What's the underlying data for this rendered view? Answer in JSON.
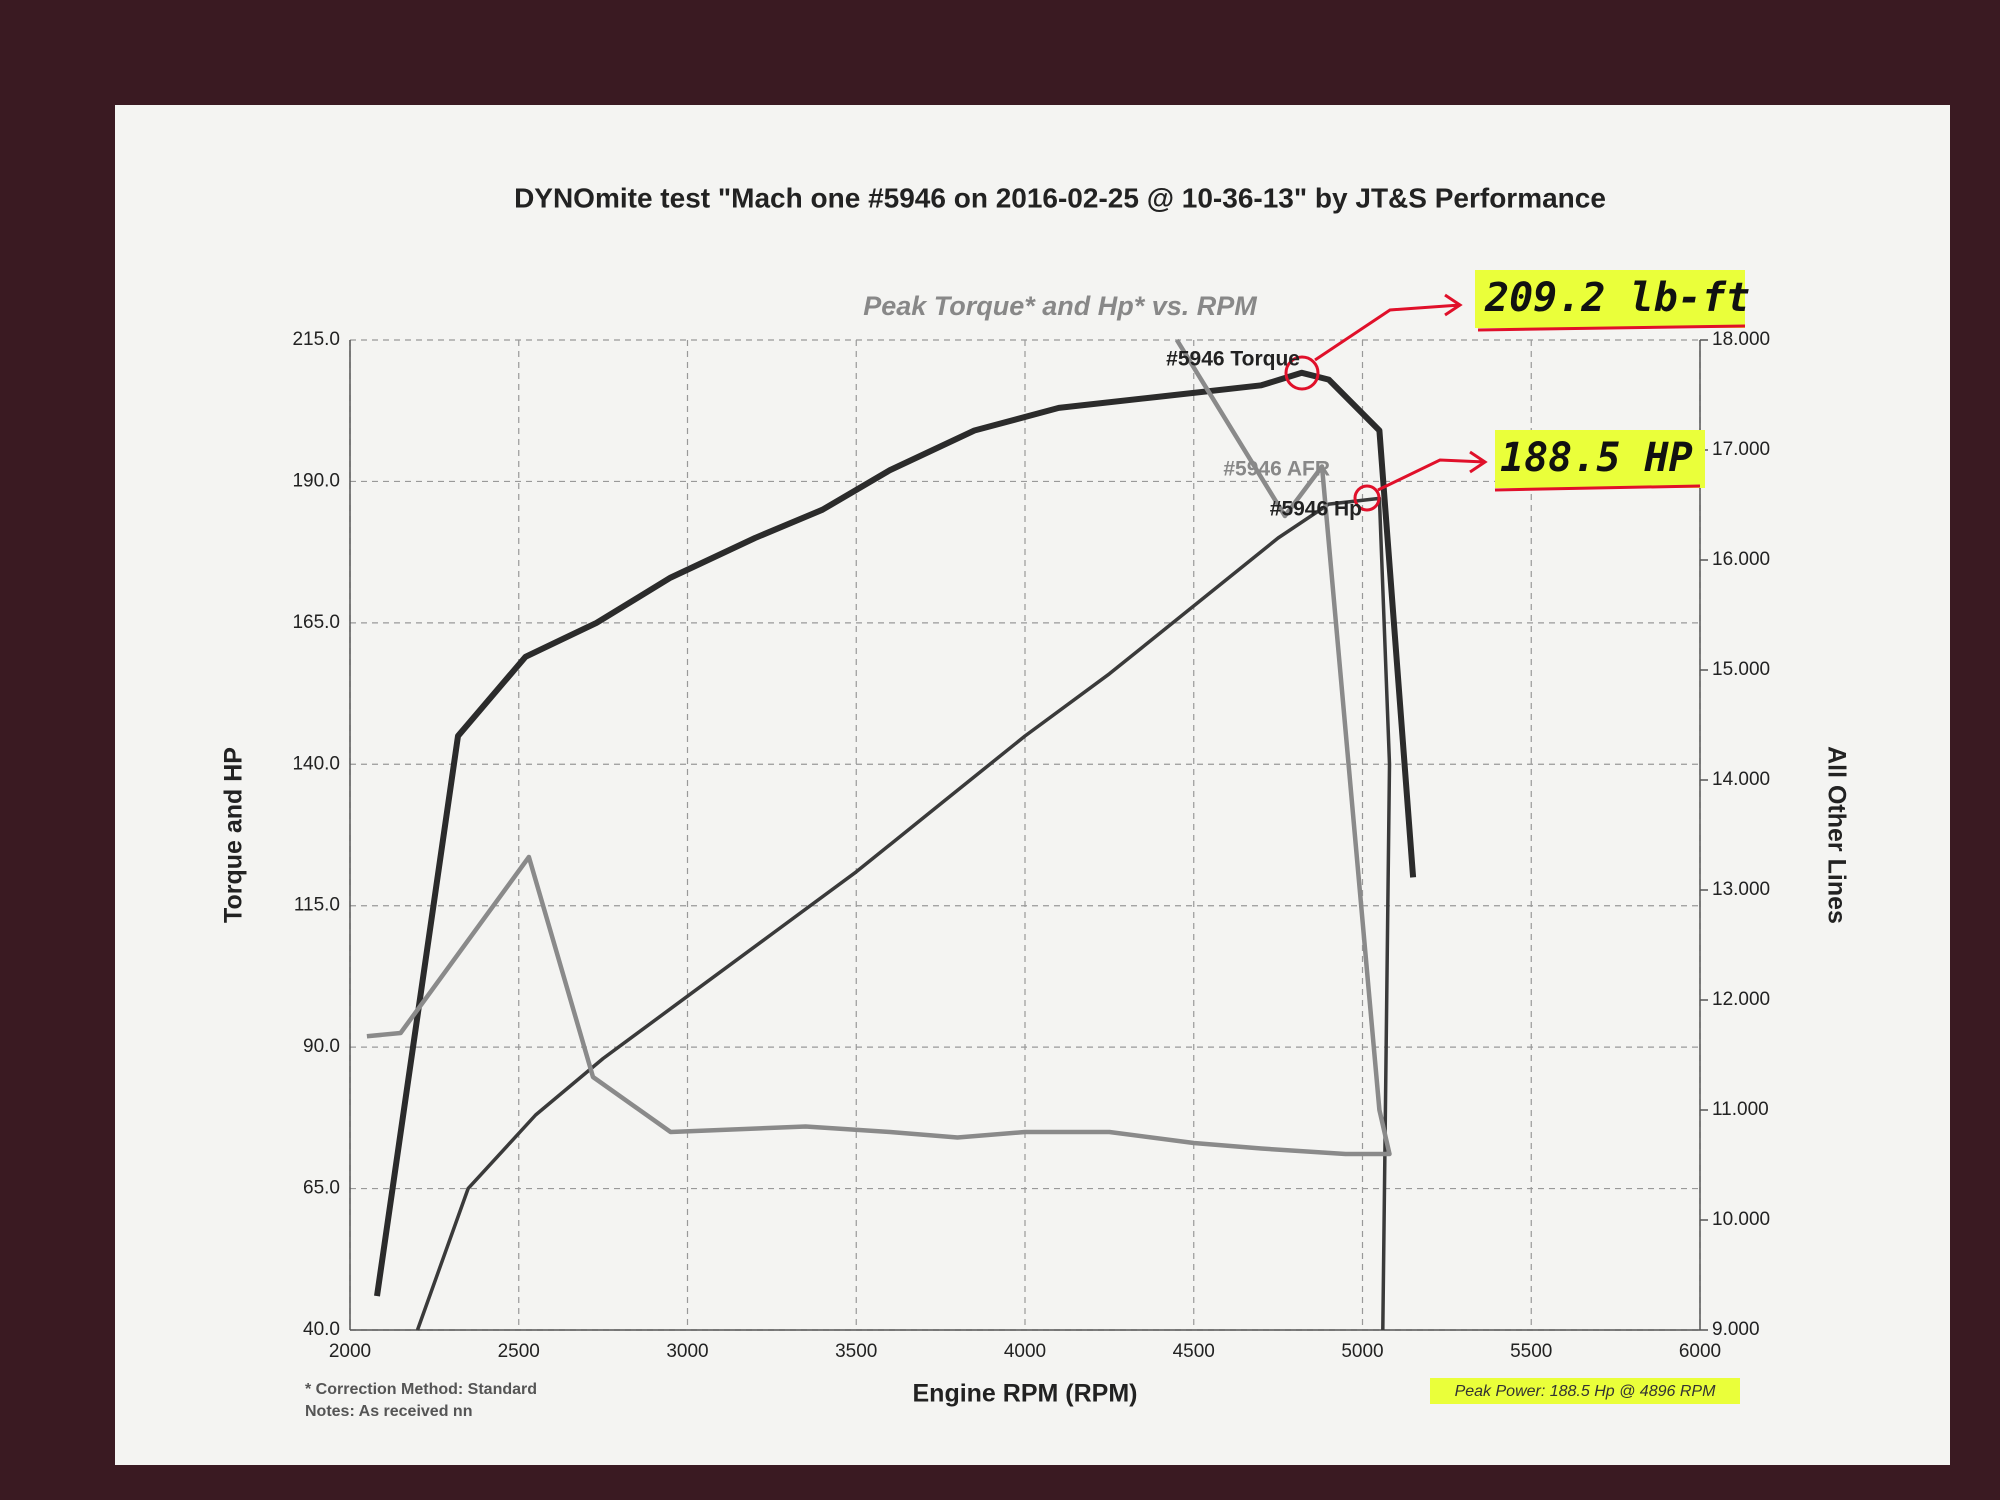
{
  "chart_data": {
    "type": "line",
    "title": "DYNOmite test \"Mach one #5946 on 2016-02-25 @ 10-36-13\" by JT&S Performance",
    "subtitle": "Peak Torque* and Hp* vs. RPM",
    "xlabel": "Engine RPM (RPM)",
    "ylabel": "Torque and HP",
    "y2label": "All Other Lines",
    "xlim": [
      2000,
      6000
    ],
    "xticks": [
      2000,
      2500,
      3000,
      3500,
      4000,
      4500,
      5000,
      5500,
      6000
    ],
    "ylim": [
      40,
      215
    ],
    "yticks": [
      {
        "value": 40,
        "label": "40.0"
      },
      {
        "value": 65,
        "label": "65.0"
      },
      {
        "value": 90,
        "label": "90.0"
      },
      {
        "value": 115,
        "label": "115.0"
      },
      {
        "value": 140,
        "label": "140.0"
      },
      {
        "value": 165,
        "label": "165.0"
      },
      {
        "value": 190,
        "label": "190.0"
      },
      {
        "value": 215,
        "label": "215.0"
      }
    ],
    "y2lim": [
      9,
      18
    ],
    "y2ticks": [
      {
        "value": 9,
        "label": "9.000"
      },
      {
        "value": 10,
        "label": "10.000"
      },
      {
        "value": 11,
        "label": "11.000"
      },
      {
        "value": 12,
        "label": "12.000"
      },
      {
        "value": 13,
        "label": "13.000"
      },
      {
        "value": 14,
        "label": "14.000"
      },
      {
        "value": 15,
        "label": "15.000"
      },
      {
        "value": 16,
        "label": "16.000"
      },
      {
        "value": 17,
        "label": "17.000"
      },
      {
        "value": 18,
        "label": "18.000"
      }
    ],
    "grid": true,
    "series": [
      {
        "name": "#5946 Torque",
        "color": "#2b2b2b",
        "x": [
          2080,
          2320,
          2520,
          2730,
          2950,
          3200,
          3400,
          3600,
          3850,
          4100,
          4400,
          4700,
          4820,
          4900,
          5050,
          5150
        ],
        "values": [
          46,
          145,
          159,
          165,
          173,
          180,
          185,
          192,
          199,
          203,
          205,
          207,
          209.2,
          208,
          199,
          120
        ]
      },
      {
        "name": "#5946 Hp",
        "color": "#3a3a3a",
        "x": [
          2200,
          2350,
          2550,
          2750,
          3000,
          3250,
          3500,
          3750,
          4000,
          4250,
          4500,
          4750,
          4900,
          5050,
          5080,
          5060
        ],
        "values": [
          40,
          65,
          78,
          88,
          99,
          110,
          121,
          133,
          145,
          156,
          168,
          180,
          186,
          187,
          140,
          40
        ]
      },
      {
        "name": "#5946 AFR",
        "color": "#8a8a8a",
        "axis": "y2",
        "x": [
          2050,
          2150,
          2530,
          2720,
          2950,
          3350,
          3600,
          3800,
          4000,
          4250,
          4500,
          4700,
          4950,
          5080,
          5050,
          4880,
          4770,
          4450
        ],
        "values": [
          11.67,
          11.7,
          13.3,
          11.3,
          10.8,
          10.85,
          10.8,
          10.75,
          10.8,
          10.8,
          10.7,
          10.65,
          10.6,
          10.6,
          11.0,
          16.85,
          16.4,
          18.0
        ]
      }
    ],
    "annotations": [
      "209.2 lb-ft",
      "188.5 HP"
    ],
    "footnotes": [
      "* Correction Method: Standard",
      "Notes: As received nn",
      "Peak Power: 188.5 Hp @ 4896 RPM"
    ]
  }
}
